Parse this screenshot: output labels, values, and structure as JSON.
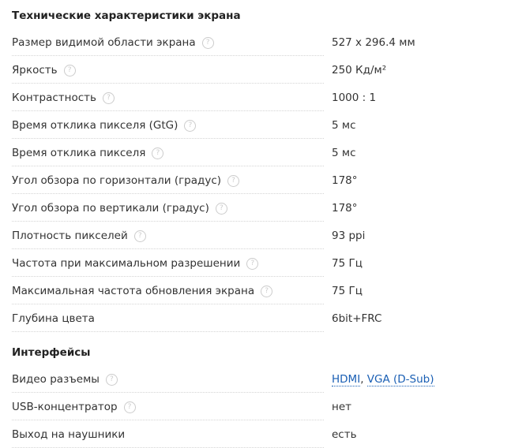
{
  "sections": [
    {
      "title": "Технические характеристики экрана",
      "rows": [
        {
          "label": "Размер видимой области экрана",
          "value": "527 x 296.4 мм"
        },
        {
          "label": "Яркость",
          "value": "250 Кд/м²"
        },
        {
          "label": "Контрастность",
          "value": "1000 : 1"
        },
        {
          "label": "Время отклика пикселя (GtG)",
          "value": "5 мс"
        },
        {
          "label": "Время отклика пикселя",
          "value": "5 мс"
        },
        {
          "label": "Угол обзора по горизонтали (градус)",
          "value": "178°"
        },
        {
          "label": "Угол обзора по вертикали (градус)",
          "value": "178°"
        },
        {
          "label": "Плотность пикселей",
          "value": "93 ppi"
        },
        {
          "label": "Частота при максимальном разрешении",
          "value": "75 Гц"
        },
        {
          "label": "Максимальная частота обновления экрана",
          "value": "75 Гц"
        },
        {
          "label": "Глубина цвета",
          "value": "6bit+FRC",
          "nohelp": true
        }
      ]
    },
    {
      "title": "Интерфейсы",
      "rows": [
        {
          "label": "Видео разъемы",
          "links": [
            "HDMI",
            "VGA (D-Sub)"
          ]
        },
        {
          "label": "USB-концентратор",
          "value": "нет"
        },
        {
          "label": "Выход на наушники",
          "value": "есть",
          "nohelp": true
        }
      ]
    }
  ],
  "help_icon": "?"
}
